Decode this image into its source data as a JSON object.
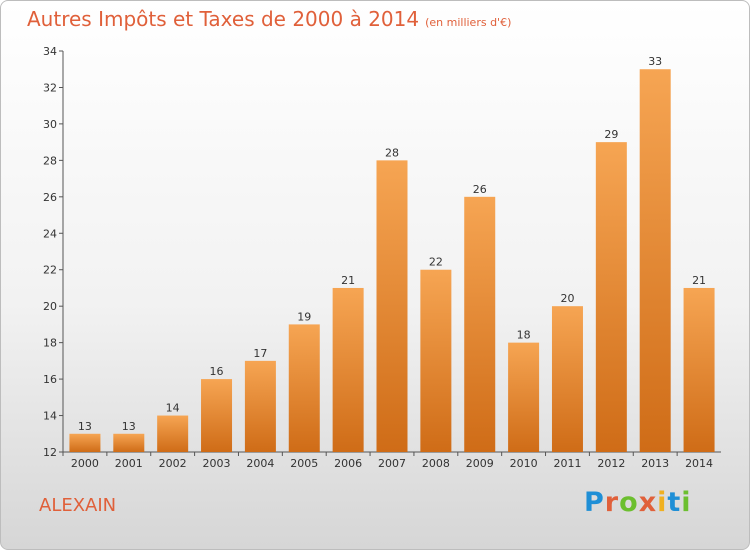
{
  "header": {
    "title": "Autres Impôts et Taxes de 2000 à 2014",
    "subtitle": "(en milliers d'€)"
  },
  "footer": {
    "location": "ALEXAIN",
    "logo_text": "Proxiti"
  },
  "colors": {
    "bar_light": "#f6a553",
    "bar_dark": "#cf6c17",
    "title": "#e0603a"
  },
  "chart_data": {
    "type": "bar",
    "title": "Autres Impôts et Taxes de 2000 à 2014",
    "subtitle": "(en milliers d'€)",
    "categories": [
      "2000",
      "2001",
      "2002",
      "2003",
      "2004",
      "2005",
      "2006",
      "2007",
      "2008",
      "2009",
      "2010",
      "2011",
      "2012",
      "2013",
      "2014"
    ],
    "values": [
      13,
      13,
      14,
      16,
      17,
      19,
      21,
      28,
      22,
      26,
      18,
      20,
      29,
      33,
      21
    ],
    "ylim": [
      12,
      34
    ],
    "yticks": [
      12,
      14,
      16,
      18,
      20,
      22,
      24,
      26,
      28,
      30,
      32,
      34
    ],
    "grid": false,
    "legend": "none"
  }
}
